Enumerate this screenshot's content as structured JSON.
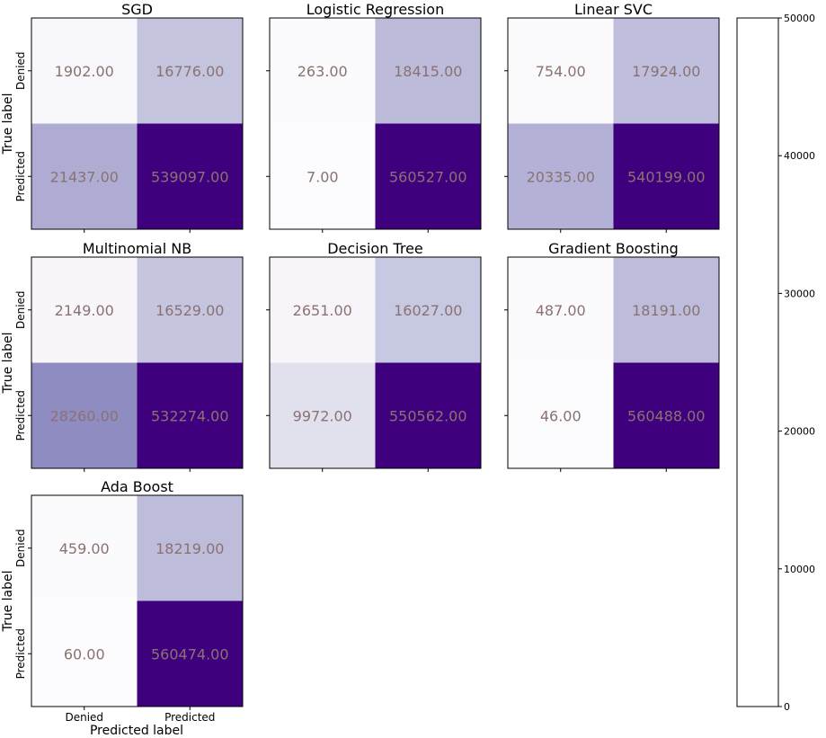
{
  "chart_data": {
    "type": "heatmap",
    "colormap": "Purples",
    "color_range": [
      0,
      50000
    ],
    "xlabel": "Predicted label",
    "ylabel": "True label",
    "x_tick_labels": [
      "Denied",
      "Predicted"
    ],
    "y_tick_labels": [
      "Denied",
      "Predicted"
    ],
    "colorbar_ticks": [
      0,
      10000,
      20000,
      30000,
      40000,
      50000
    ],
    "panels": [
      {
        "title": "SGD",
        "matrix": [
          [
            1902,
            16776
          ],
          [
            21437,
            539097
          ]
        ],
        "labels": [
          [
            "1902.00",
            "16776.00"
          ],
          [
            "21437.00",
            "539097.00"
          ]
        ]
      },
      {
        "title": "Logistic Regression",
        "matrix": [
          [
            263,
            18415
          ],
          [
            7,
            560527
          ]
        ],
        "labels": [
          [
            "263.00",
            "18415.00"
          ],
          [
            "7.00",
            "560527.00"
          ]
        ]
      },
      {
        "title": "Linear SVC",
        "matrix": [
          [
            754,
            17924
          ],
          [
            20335,
            540199
          ]
        ],
        "labels": [
          [
            "754.00",
            "17924.00"
          ],
          [
            "20335.00",
            "540199.00"
          ]
        ]
      },
      {
        "title": "Multinomial NB",
        "matrix": [
          [
            2149,
            16529
          ],
          [
            28260,
            532274
          ]
        ],
        "labels": [
          [
            "2149.00",
            "16529.00"
          ],
          [
            "28260.00",
            "532274.00"
          ]
        ]
      },
      {
        "title": "Decision Tree",
        "matrix": [
          [
            2651,
            16027
          ],
          [
            9972,
            550562
          ]
        ],
        "labels": [
          [
            "2651.00",
            "16027.00"
          ],
          [
            "9972.00",
            "550562.00"
          ]
        ]
      },
      {
        "title": "Gradient Boosting",
        "matrix": [
          [
            487,
            18191
          ],
          [
            46,
            560488
          ]
        ],
        "labels": [
          [
            "487.00",
            "18191.00"
          ],
          [
            "46.00",
            "560488.00"
          ]
        ]
      },
      {
        "title": "Ada Boost",
        "matrix": [
          [
            459,
            18219
          ],
          [
            60,
            560474
          ]
        ],
        "labels": [
          [
            "459.00",
            "18219.00"
          ],
          [
            "60.00",
            "560474.00"
          ]
        ]
      }
    ]
  }
}
